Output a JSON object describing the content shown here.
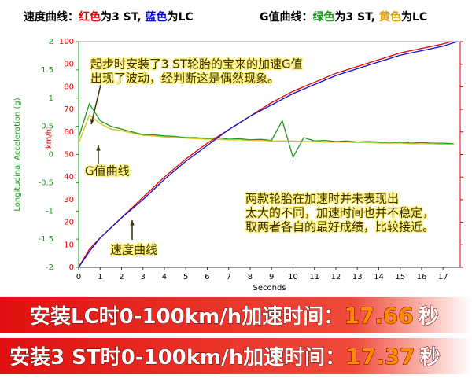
{
  "chart_data": {
    "type": "line",
    "legend_notes": [
      [
        {
          "text": "速度曲线：",
          "color": "#000000"
        },
        {
          "text": "红色",
          "color": "#e00000"
        },
        {
          "text": "为3 ST, ",
          "color": "#000000"
        },
        {
          "text": "蓝色",
          "color": "#0000e0"
        },
        {
          "text": "为LC",
          "color": "#000000"
        }
      ],
      [
        {
          "text": "G值曲线：",
          "color": "#000000"
        },
        {
          "text": "绿色",
          "color": "#1a9a1a"
        },
        {
          "text": "为3 ST, ",
          "color": "#000000"
        },
        {
          "text": "黄色",
          "color": "#e0a000"
        },
        {
          "text": "为LC",
          "color": "#000000"
        }
      ]
    ],
    "x_label": "Seconds",
    "y_label": "Longitudinal Acceleration (g)",
    "y2_label": "km/h",
    "xlim": [
      0,
      17.8
    ],
    "xticks": [
      0,
      1,
      2,
      3,
      4,
      5,
      6,
      7,
      8,
      9,
      10,
      11,
      12,
      13,
      14,
      15,
      16,
      17
    ],
    "ylim": [
      -2,
      2
    ],
    "yticks": [
      2,
      1.5,
      1,
      0.5,
      0,
      -0.5,
      -1,
      -1.5,
      -2
    ],
    "y2lim": [
      0,
      100
    ],
    "y2ticks": [
      100,
      90,
      80,
      70,
      60,
      50,
      40,
      30,
      20,
      10,
      0
    ],
    "series": [
      {
        "name": "3 ST",
        "color": "#1a9a1a",
        "x": [
          0,
          0.5,
          1,
          1.5,
          2,
          2.5,
          3,
          3.5,
          4,
          4.5,
          5,
          5.5,
          6,
          6.5,
          7,
          7.5,
          8,
          8.5,
          9,
          9.5,
          10,
          10.5,
          11,
          11.5,
          12,
          12.5,
          13,
          13.5,
          14,
          14.5,
          15,
          15.5,
          16,
          16.5,
          17,
          17.5
        ],
        "values": [
          0.3,
          0.9,
          0.6,
          0.5,
          0.45,
          0.4,
          0.35,
          0.35,
          0.33,
          0.32,
          0.3,
          0.3,
          0.28,
          0.3,
          0.27,
          0.28,
          0.26,
          0.27,
          0.25,
          0.6,
          -0.05,
          0.3,
          0.24,
          0.25,
          0.23,
          0.24,
          0.22,
          0.23,
          0.22,
          0.21,
          0.22,
          0.2,
          0.21,
          0.2,
          0.2,
          0.19
        ]
      },
      {
        "name": "LC",
        "color": "#d8c020",
        "x": [
          0,
          0.5,
          1,
          1.5,
          2,
          2.5,
          3,
          3.5,
          4,
          4.5,
          5,
          5.5,
          6,
          6.5,
          7,
          7.5,
          8,
          8.5,
          9,
          9.5,
          10,
          10.5,
          11,
          11.5,
          12,
          12.5,
          13,
          13.5,
          14,
          14.5,
          15,
          15.5,
          16,
          16.5,
          17,
          17.5
        ],
        "values": [
          0.2,
          0.7,
          0.55,
          0.45,
          0.42,
          0.38,
          0.34,
          0.33,
          0.31,
          0.3,
          0.29,
          0.28,
          0.27,
          0.27,
          0.26,
          0.26,
          0.25,
          0.25,
          0.24,
          0.24,
          0.24,
          0.23,
          0.23,
          0.22,
          0.22,
          0.22,
          0.21,
          0.21,
          0.2,
          0.2,
          0.2,
          0.19,
          0.19,
          0.19,
          0.18,
          0.18
        ]
      },
      {
        "name": "3 ST",
        "color": "#e00000",
        "axis": "y2",
        "x": [
          0,
          0.5,
          1,
          2,
          3,
          4,
          5,
          6,
          7,
          8,
          9,
          10,
          11,
          12,
          13,
          14,
          15,
          16,
          17,
          17.37
        ],
        "values": [
          0,
          8,
          13,
          22,
          31,
          40,
          48,
          55,
          61,
          67,
          73,
          78,
          82,
          86,
          89,
          92,
          95,
          97,
          99,
          100
        ]
      },
      {
        "name": "LC",
        "color": "#1010d0",
        "axis": "y2",
        "x": [
          0,
          0.5,
          1,
          2,
          3,
          4,
          5,
          6,
          7,
          8,
          9,
          10,
          11,
          12,
          13,
          14,
          15,
          16,
          17,
          17.66
        ],
        "values": [
          0,
          7,
          13,
          22,
          30,
          39,
          47,
          54,
          61,
          67,
          72,
          77,
          81,
          85,
          88,
          91,
          94,
          96,
          98,
          100
        ]
      }
    ],
    "annotations": [
      {
        "lines": [
          "起步时安装了3 ST轮胎的宝来的加速G值",
          "出现了波动，经判断这是偶然现象。"
        ]
      },
      {
        "lines": [
          "G值曲线"
        ]
      },
      {
        "lines": [
          "速度曲线"
        ]
      },
      {
        "lines": [
          "两款轮胎在加速时并未表现出",
          "太大的不同，加速时间也并不稳定，",
          "取两者各自的最好成绩，比较接近。"
        ]
      }
    ],
    "banners": [
      {
        "label": "安装LC时0-100km/h加速时间：",
        "value": "17.66",
        "unit": "秒"
      },
      {
        "label": "安装3 ST时0-100km/h加速时间：",
        "value": "17.37",
        "unit": "秒"
      }
    ]
  }
}
